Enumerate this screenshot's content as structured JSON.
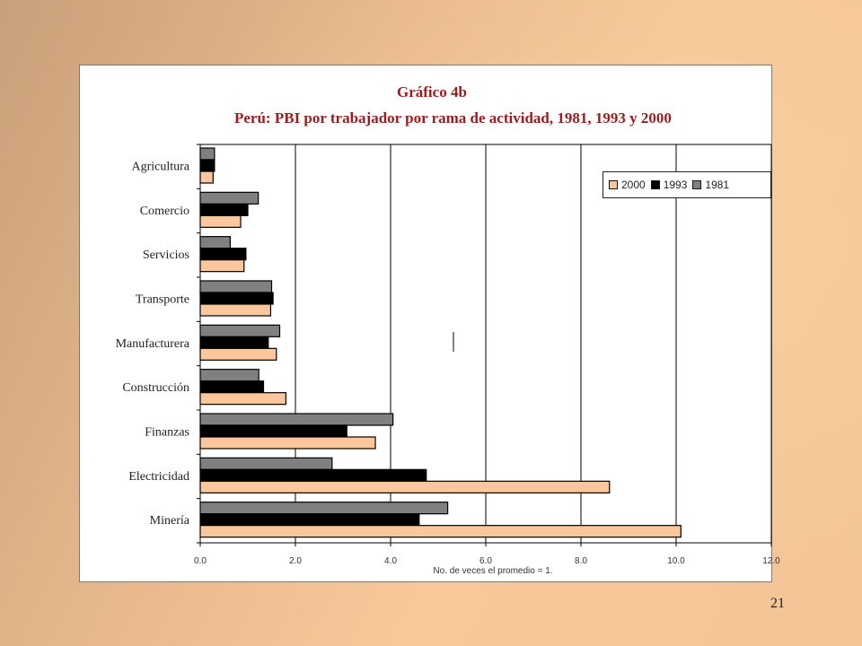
{
  "page": {
    "number": "21"
  },
  "colors": {
    "s2000": "#fcc79d",
    "s1993": "#000000",
    "s1981": "#808080",
    "title": "#9b1c1c"
  },
  "chart_data": {
    "type": "bar",
    "orientation": "horizontal",
    "title": "Gráfico  4b",
    "subtitle": "Perú: PBI por trabajador por rama de actividad, 1981, 1993 y 2000",
    "xlabel": "No. de veces el promedio = 1.",
    "ylabel": "",
    "xlim": [
      0,
      12
    ],
    "xticks": [
      "0.0",
      "2.0",
      "4.0",
      "6.0",
      "8.0",
      "10.0",
      "12.0"
    ],
    "grid": true,
    "legend_position": "top-right",
    "categories": [
      "Agricultura",
      "Comercio",
      "Servicios",
      "Transporte",
      "Manufacturera",
      "Construcción",
      "Finanzas",
      "Electricidad",
      "Minería"
    ],
    "series": [
      {
        "name": "1981",
        "values": [
          0.3,
          1.22,
          0.63,
          1.5,
          1.67,
          1.23,
          4.05,
          2.77,
          5.2
        ]
      },
      {
        "name": "1993",
        "values": [
          0.3,
          1.0,
          0.96,
          1.53,
          1.43,
          1.33,
          3.08,
          4.75,
          4.6
        ]
      },
      {
        "name": "2000",
        "values": [
          0.27,
          0.85,
          0.92,
          1.48,
          1.6,
          1.8,
          3.68,
          8.6,
          10.1
        ]
      }
    ],
    "legend": [
      "2000",
      "1993",
      "1981"
    ]
  }
}
